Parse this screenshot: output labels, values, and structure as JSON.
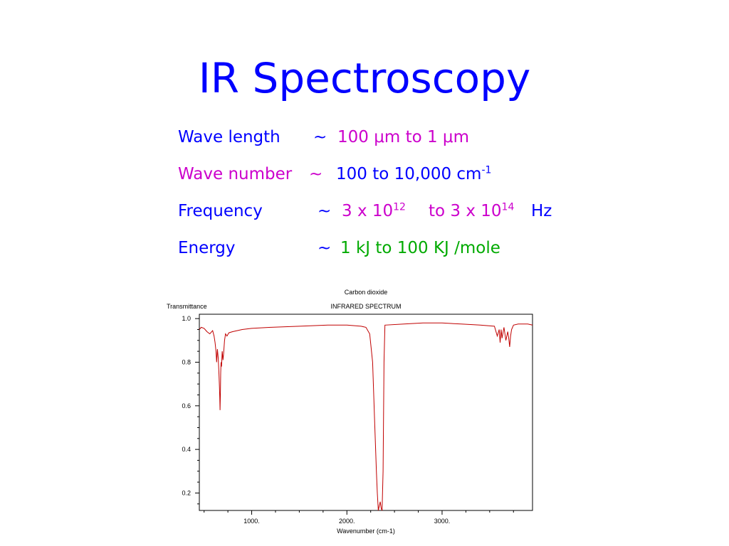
{
  "slide": {
    "title": "IR Spectroscopy",
    "rows": [
      {
        "label": "Wave length",
        "sep": "~",
        "v1": "100 ",
        "mu1": "μ",
        "v2": "m to 1 ",
        "mu2": "μ",
        "v3": "m"
      },
      {
        "label": "Wave number",
        "sep": "~",
        "v1": "100 to 10,000 cm",
        "sup1": "-1"
      },
      {
        "label": "Frequency",
        "sep": "~",
        "v1": "3 x 10",
        "sup1": "12",
        "v2": "to 3 x 10",
        "sup2": "14",
        "unit": "Hz"
      },
      {
        "label": "Energy",
        "sep": "~",
        "v1": "1 kJ to 100 KJ /mole"
      }
    ]
  },
  "chart_data": {
    "type": "line",
    "title": "Carbon dioxide",
    "subtitle": "INFRARED SPECTRUM",
    "ylabel": "Transmittance",
    "xlabel": "Wavenumber (cm-1)",
    "xlim": [
      450,
      3950
    ],
    "ylim": [
      0.12,
      1.02
    ],
    "xticks": [
      {
        "value": 1000,
        "label": "1000."
      },
      {
        "value": 2000,
        "label": "2000."
      },
      {
        "value": 3000,
        "label": "3000."
      }
    ],
    "yticks": [
      {
        "value": 0.2,
        "label": "0.2"
      },
      {
        "value": 0.4,
        "label": "0.4"
      },
      {
        "value": 0.6,
        "label": "0.6"
      },
      {
        "value": 0.8,
        "label": "0.8"
      },
      {
        "value": 1.0,
        "label": "1.0"
      }
    ],
    "line_color": "#c00000",
    "x": [
      450,
      470,
      500,
      530,
      560,
      590,
      605,
      615,
      625,
      632,
      640,
      648,
      655,
      660,
      665,
      668,
      671,
      674,
      678,
      683,
      690,
      698,
      705,
      715,
      725,
      740,
      760,
      800,
      900,
      1000,
      1200,
      1500,
      1800,
      2000,
      2150,
      2200,
      2240,
      2270,
      2290,
      2310,
      2320,
      2330,
      2340,
      2350,
      2360,
      2370,
      2380,
      2390,
      2400,
      2600,
      2800,
      3000,
      3200,
      3400,
      3550,
      3580,
      3600,
      3610,
      3620,
      3630,
      3650,
      3670,
      3690,
      3700,
      3710,
      3720,
      3730,
      3750,
      3800,
      3900,
      3950
    ],
    "y": [
      0.95,
      0.96,
      0.955,
      0.94,
      0.93,
      0.945,
      0.92,
      0.89,
      0.85,
      0.8,
      0.86,
      0.82,
      0.76,
      0.7,
      0.64,
      0.58,
      0.66,
      0.75,
      0.8,
      0.78,
      0.85,
      0.81,
      0.84,
      0.9,
      0.93,
      0.92,
      0.935,
      0.94,
      0.95,
      0.955,
      0.96,
      0.965,
      0.97,
      0.97,
      0.965,
      0.96,
      0.93,
      0.8,
      0.55,
      0.3,
      0.2,
      0.12,
      0.14,
      0.16,
      0.13,
      0.12,
      0.3,
      0.8,
      0.97,
      0.975,
      0.98,
      0.98,
      0.975,
      0.97,
      0.965,
      0.92,
      0.95,
      0.89,
      0.95,
      0.91,
      0.96,
      0.9,
      0.94,
      0.91,
      0.87,
      0.92,
      0.95,
      0.97,
      0.975,
      0.975,
      0.97
    ]
  }
}
